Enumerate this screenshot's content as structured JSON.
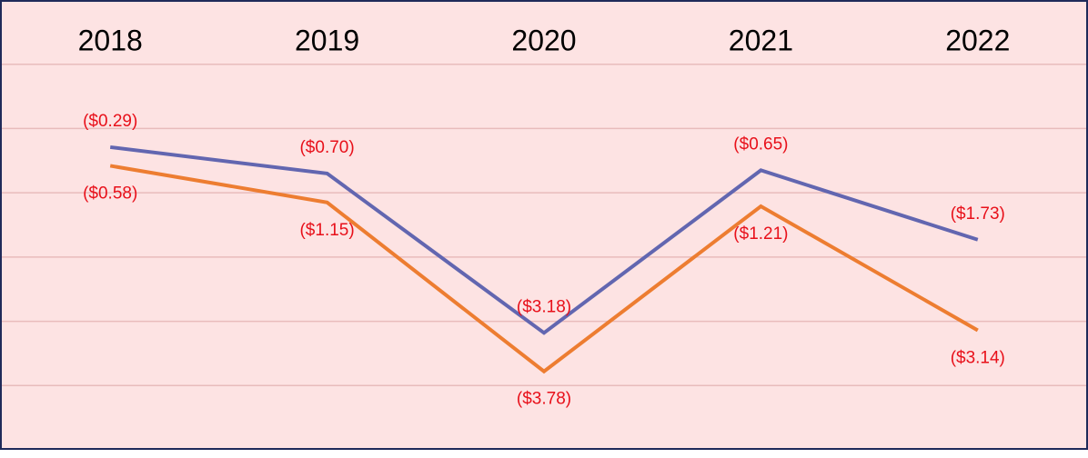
{
  "chart_data": {
    "type": "line",
    "categories": [
      "2018",
      "2019",
      "2020",
      "2021",
      "2022"
    ],
    "series": [
      {
        "color": "#6266b0",
        "values": [
          -0.29,
          -0.7,
          -3.18,
          -0.65,
          -1.73
        ],
        "value_labels": [
          "($0.29)",
          "($0.70)",
          "($3.18)",
          "($0.65)",
          "($1.73)"
        ],
        "label_position": "above"
      },
      {
        "color": "#ed7d31",
        "values": [
          -0.58,
          -1.15,
          -3.78,
          -1.21,
          -3.14
        ],
        "value_labels": [
          "($0.58)",
          "($1.15)",
          "($3.78)",
          "($1.21)",
          "($3.14)"
        ],
        "label_position": "below"
      }
    ],
    "ylim": [
      -5,
      2
    ],
    "yticks": [
      -4,
      -3,
      -2,
      -1,
      0,
      1
    ],
    "grid": true
  }
}
